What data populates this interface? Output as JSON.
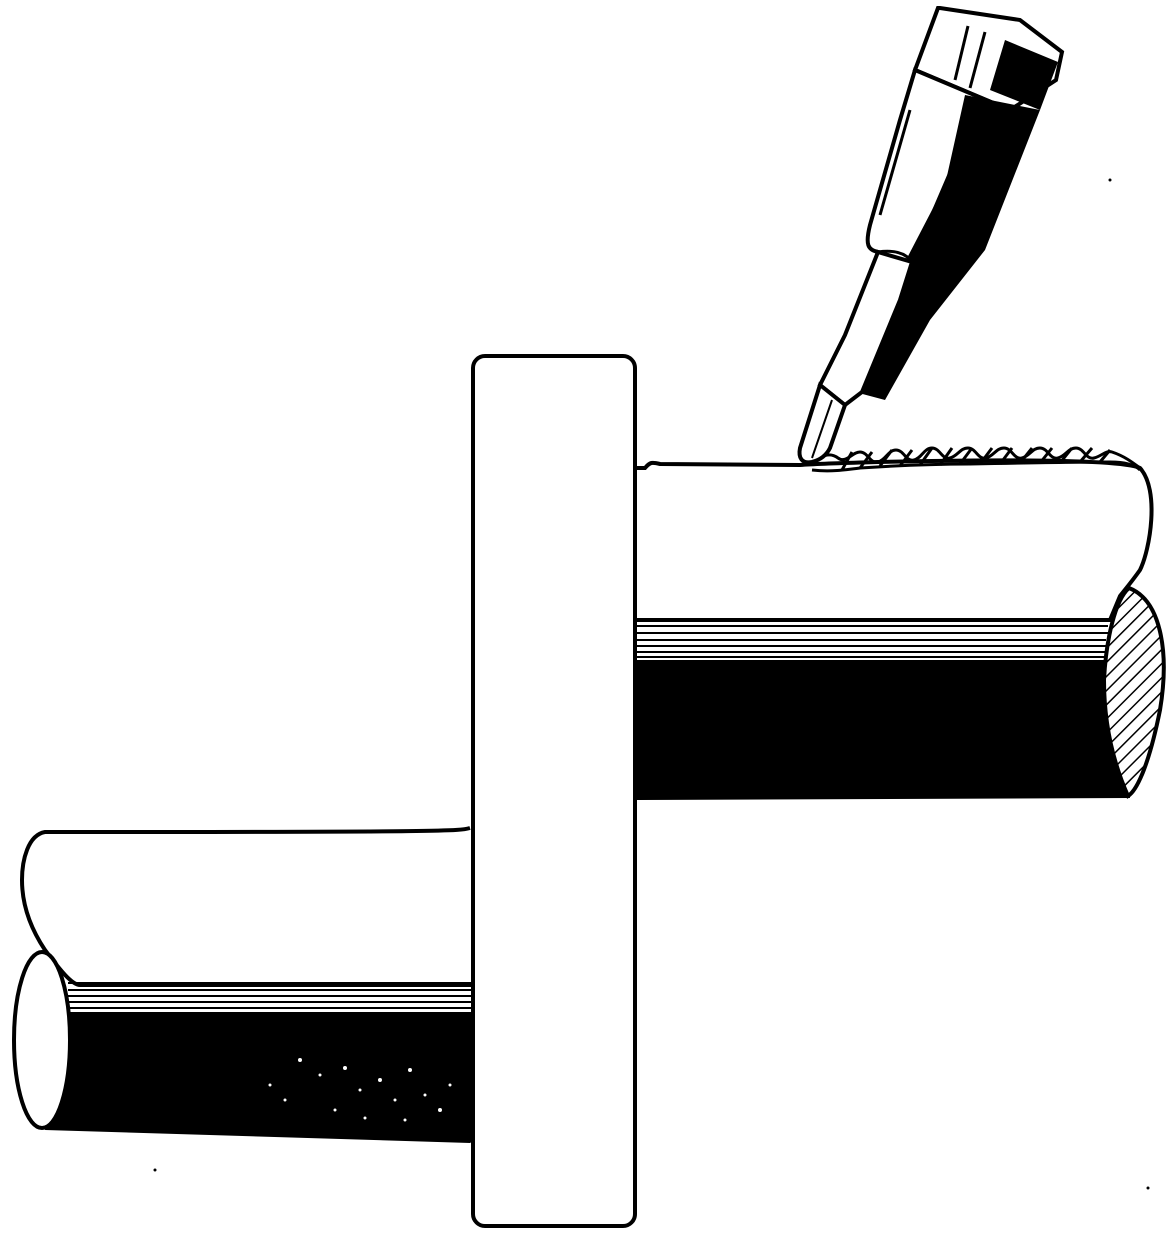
{
  "colors": {
    "background": "#ffffff",
    "ink": "#000000"
  },
  "figure": {
    "subject": "welding",
    "parts": [
      "welding-torch",
      "weld-bead",
      "upper-rod",
      "lower-rod",
      "flange-plate"
    ]
  }
}
